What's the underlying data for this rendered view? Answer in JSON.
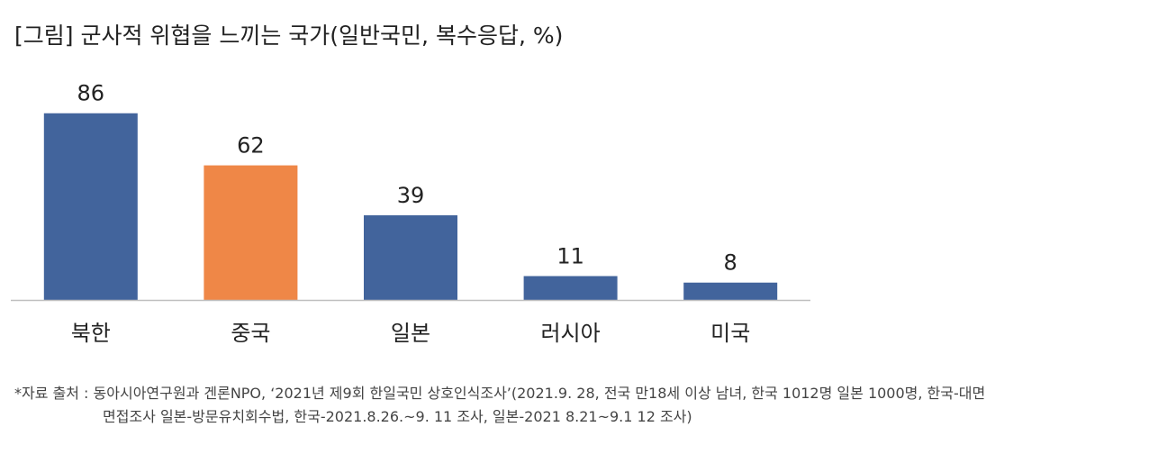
{
  "chart_data": {
    "type": "bar",
    "title": "[그림] 군사적 위협을 느끼는 국가(일반국민, 복수응답, %)",
    "categories": [
      "북한",
      "중국",
      "일본",
      "러시아",
      "미국"
    ],
    "values": [
      86,
      62,
      39,
      11,
      8
    ],
    "data_labels": [
      "86",
      "62",
      "39",
      "11",
      "8"
    ],
    "bar_colors": [
      "#42649c",
      "#ef8747",
      "#42649c",
      "#42649c",
      "#42649c"
    ],
    "axis_color": "#bfbfbf",
    "ylim": [
      0,
      100
    ],
    "grid": false,
    "legend": "none",
    "xlabel": "",
    "ylabel": ""
  },
  "source_note": {
    "line1": "*자료 출처 : 동아시아연구원과 겐론NPO, ‘2021년 제9회 한일국민 상호인식조사’(2021.9. 28, 전국 만18세 이상 남녀, 한국 1012명 일본 1000명, 한국-대면",
    "line2": "면접조사 일본-방문유치회수법, 한국-2021.8.26.~9. 11 조사, 일본-2021 8.21~9.1 12 조사)"
  }
}
